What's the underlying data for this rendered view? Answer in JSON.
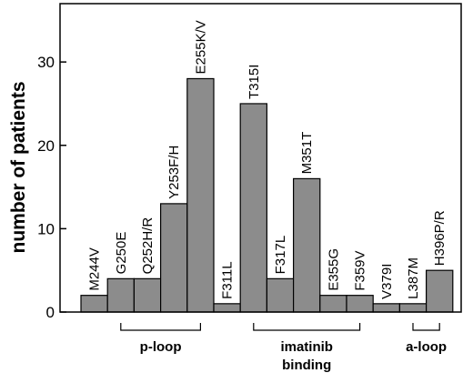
{
  "chart_data": {
    "type": "bar",
    "ylabel": "number of patients",
    "xlabel": "",
    "title": "",
    "ylim": [
      0,
      37
    ],
    "yticks": [
      0,
      10,
      20,
      30
    ],
    "grid": false,
    "categories": [
      "M244V",
      "G250E",
      "Q252H/R",
      "Y253F/H",
      "E255K/V",
      "F311L",
      "T315I",
      "F317L",
      "M351T",
      "E355G",
      "F359V",
      "V379I",
      "L387M",
      "H396P/R"
    ],
    "values": [
      2,
      4,
      4,
      13,
      28,
      1,
      25,
      4,
      16,
      2,
      2,
      1,
      1,
      5
    ],
    "regions": [
      {
        "label": "p-loop",
        "from": "G250E",
        "to": "E255K/V"
      },
      {
        "label": "imatinib\nbinding",
        "from": "T315I",
        "to": "F359V"
      },
      {
        "label": "a-loop",
        "from": "L387M",
        "to": "H396P/R"
      }
    ],
    "bar_color": "#8c8c8c"
  }
}
